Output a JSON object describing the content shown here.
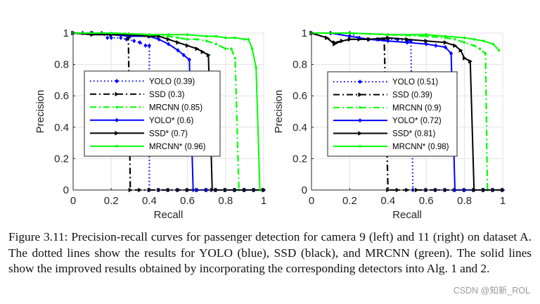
{
  "chart_data": [
    {
      "type": "line",
      "panel": "left",
      "title": "",
      "xlabel": "Recall",
      "ylabel": "Precision",
      "xlim": [
        0,
        1
      ],
      "ylim": [
        0,
        1
      ],
      "xticks": [
        "0",
        "0.2",
        "0.4",
        "0.6",
        "0.8",
        "1"
      ],
      "yticks": [
        "0",
        "0.2",
        "0.4",
        "0.6",
        "0.8",
        "1"
      ],
      "grid": true,
      "legend_position": "center-left",
      "series": [
        {
          "name": "YOLO (0.39)",
          "color": "#0000ff",
          "style": "dotted",
          "marker": "diamond",
          "x": [
            0,
            0.05,
            0.1,
            0.15,
            0.18,
            0.2,
            0.25,
            0.28,
            0.32,
            0.35,
            0.38,
            0.4,
            0.4,
            0.45,
            0.5,
            0.55,
            0.6,
            0.65,
            0.7,
            0.75,
            0.8,
            0.85,
            0.9,
            0.95,
            1.0
          ],
          "y": [
            1.0,
            1.0,
            1.0,
            1.0,
            0.97,
            0.97,
            0.97,
            0.96,
            0.95,
            0.94,
            0.92,
            0.92,
            0,
            0,
            0,
            0,
            0,
            0,
            0,
            0,
            0,
            0,
            0,
            0,
            0
          ]
        },
        {
          "name": "SSD (0.3)",
          "color": "#000000",
          "style": "dashdot",
          "marker": "triangle-right",
          "x": [
            0,
            0.1,
            0.2,
            0.28,
            0.29,
            0.3,
            0.35,
            0.4,
            0.45,
            0.5,
            0.55,
            0.6,
            0.65,
            0.7,
            0.75,
            0.8,
            0.85,
            0.9,
            0.95,
            1.0
          ],
          "y": [
            1.0,
            1.0,
            0.99,
            0.99,
            0.97,
            0,
            0,
            0,
            0,
            0,
            0,
            0,
            0,
            0,
            0,
            0,
            0,
            0,
            0,
            0
          ]
        },
        {
          "name": "MRCNN (0.85)",
          "color": "#00ff00",
          "style": "dashdot",
          "marker": "dot",
          "x": [
            0,
            0.2,
            0.4,
            0.5,
            0.55,
            0.6,
            0.65,
            0.7,
            0.75,
            0.8,
            0.83,
            0.85,
            0.87,
            0.9,
            0.95,
            1.0
          ],
          "y": [
            1.0,
            1.0,
            0.99,
            0.98,
            0.97,
            0.96,
            0.96,
            0.95,
            0.93,
            0.9,
            0.9,
            0.84,
            0,
            0,
            0,
            0
          ]
        },
        {
          "name": "YOLO* (0.6)",
          "color": "#0000ff",
          "style": "solid",
          "marker": "diamond",
          "x": [
            0,
            0.1,
            0.2,
            0.3,
            0.4,
            0.45,
            0.5,
            0.55,
            0.58,
            0.61,
            0.63,
            0.65,
            0.7,
            0.75,
            0.8,
            0.85,
            0.9,
            0.95,
            1.0
          ],
          "y": [
            1.0,
            1.0,
            0.99,
            0.98,
            0.98,
            0.96,
            0.93,
            0.89,
            0.86,
            0.83,
            0,
            0,
            0,
            0,
            0,
            0,
            0,
            0,
            0
          ]
        },
        {
          "name": "SSD* (0.7)",
          "color": "#000000",
          "style": "solid",
          "marker": "triangle-right",
          "x": [
            0,
            0.1,
            0.2,
            0.3,
            0.4,
            0.45,
            0.5,
            0.55,
            0.6,
            0.65,
            0.68,
            0.71,
            0.73,
            0.75,
            0.8,
            0.85,
            0.9,
            0.95,
            1.0
          ],
          "y": [
            1.0,
            0.99,
            0.99,
            0.99,
            0.98,
            0.98,
            0.96,
            0.94,
            0.92,
            0.9,
            0.88,
            0.86,
            0,
            0,
            0,
            0,
            0,
            0,
            0
          ]
        },
        {
          "name": "MRCNN* (0.96)",
          "color": "#00ff00",
          "style": "solid",
          "marker": "dot",
          "x": [
            0,
            0.2,
            0.4,
            0.5,
            0.6,
            0.7,
            0.75,
            0.8,
            0.85,
            0.9,
            0.92,
            0.94,
            0.96,
            0.98
          ],
          "y": [
            1.0,
            1.0,
            0.99,
            0.99,
            0.99,
            0.98,
            0.98,
            0.97,
            0.97,
            0.96,
            0.96,
            0.9,
            0.78,
            0
          ]
        }
      ]
    },
    {
      "type": "line",
      "panel": "right",
      "title": "",
      "xlabel": "Recall",
      "ylabel": "Precision",
      "xlim": [
        0,
        1
      ],
      "ylim": [
        0,
        1
      ],
      "xticks": [
        "0",
        "0.2",
        "0.4",
        "0.6",
        "0.8",
        "1"
      ],
      "yticks": [
        "0",
        "0.2",
        "0.4",
        "0.6",
        "0.8",
        "1"
      ],
      "grid": true,
      "legend_position": "center-left",
      "series": [
        {
          "name": "YOLO (0.51)",
          "color": "#0000ff",
          "style": "dotted",
          "marker": "diamond",
          "x": [
            0,
            0.1,
            0.2,
            0.25,
            0.3,
            0.35,
            0.4,
            0.45,
            0.5,
            0.52,
            0.53,
            0.6,
            0.65,
            0.7,
            0.75,
            0.8,
            0.85,
            0.9,
            0.95,
            1.0
          ],
          "y": [
            1.0,
            1.0,
            1.0,
            0.97,
            0.96,
            0.96,
            0.96,
            0.96,
            0.95,
            0.95,
            0,
            0,
            0,
            0,
            0,
            0,
            0,
            0,
            0,
            0
          ]
        },
        {
          "name": "SSD (0.39)",
          "color": "#000000",
          "style": "dashdot",
          "marker": "triangle-right",
          "x": [
            0,
            0.08,
            0.12,
            0.16,
            0.2,
            0.25,
            0.3,
            0.35,
            0.38,
            0.4,
            0.45,
            0.5,
            0.55,
            0.6,
            0.65,
            0.7,
            0.75,
            0.8,
            0.85,
            0.9,
            0.95,
            1.0
          ],
          "y": [
            1.0,
            0.97,
            0.94,
            0.95,
            0.96,
            0.96,
            0.96,
            0.96,
            0.96,
            0,
            0,
            0,
            0,
            0,
            0,
            0,
            0,
            0,
            0,
            0,
            0,
            0
          ]
        },
        {
          "name": "MRCNN (0.9)",
          "color": "#00ff00",
          "style": "dashdot",
          "marker": "dot",
          "x": [
            0,
            0.2,
            0.4,
            0.6,
            0.7,
            0.75,
            0.8,
            0.85,
            0.88,
            0.91,
            0.92,
            0.95,
            1.0
          ],
          "y": [
            1.0,
            1.0,
            0.99,
            0.98,
            0.97,
            0.96,
            0.94,
            0.92,
            0.9,
            0.87,
            0,
            0,
            0
          ]
        },
        {
          "name": "YOLO* (0.72)",
          "color": "#0000ff",
          "style": "solid",
          "marker": "diamond",
          "x": [
            0,
            0.1,
            0.2,
            0.3,
            0.4,
            0.5,
            0.6,
            0.65,
            0.7,
            0.73,
            0.75,
            0.8,
            0.85,
            0.9,
            0.95,
            1.0
          ],
          "y": [
            1.0,
            1.0,
            0.98,
            0.96,
            0.95,
            0.94,
            0.93,
            0.92,
            0.91,
            0.87,
            0,
            0,
            0,
            0,
            0,
            0
          ]
        },
        {
          "name": "SSD* (0.81)",
          "color": "#000000",
          "style": "solid",
          "marker": "triangle-right",
          "x": [
            0,
            0.08,
            0.12,
            0.16,
            0.2,
            0.3,
            0.4,
            0.5,
            0.6,
            0.7,
            0.75,
            0.78,
            0.8,
            0.83,
            0.85,
            0.9,
            0.95,
            1.0
          ],
          "y": [
            1.0,
            0.97,
            0.93,
            0.95,
            0.96,
            0.96,
            0.97,
            0.96,
            0.95,
            0.94,
            0.92,
            0.89,
            0.84,
            0.82,
            0,
            0,
            0,
            0
          ]
        },
        {
          "name": "MRCNN* (0.98)",
          "color": "#00ff00",
          "style": "solid",
          "marker": "dot",
          "x": [
            0,
            0.2,
            0.4,
            0.6,
            0.7,
            0.8,
            0.85,
            0.9,
            0.95,
            0.98
          ],
          "y": [
            1.0,
            1.0,
            0.99,
            0.99,
            0.98,
            0.97,
            0.96,
            0.95,
            0.93,
            0.89
          ]
        }
      ]
    }
  ],
  "caption": "Figure 3.11: Precision-recall curves for passenger detection for camera 9 (left) and 11 (right) on dataset A. The dotted lines show the results for YOLO (blue), SSD (black), and MRCNN (green). The solid lines show the improved results obtained by incorporating the corresponding detectors into Alg. 1 and 2.",
  "watermark": "CSDN @知新_ROL"
}
